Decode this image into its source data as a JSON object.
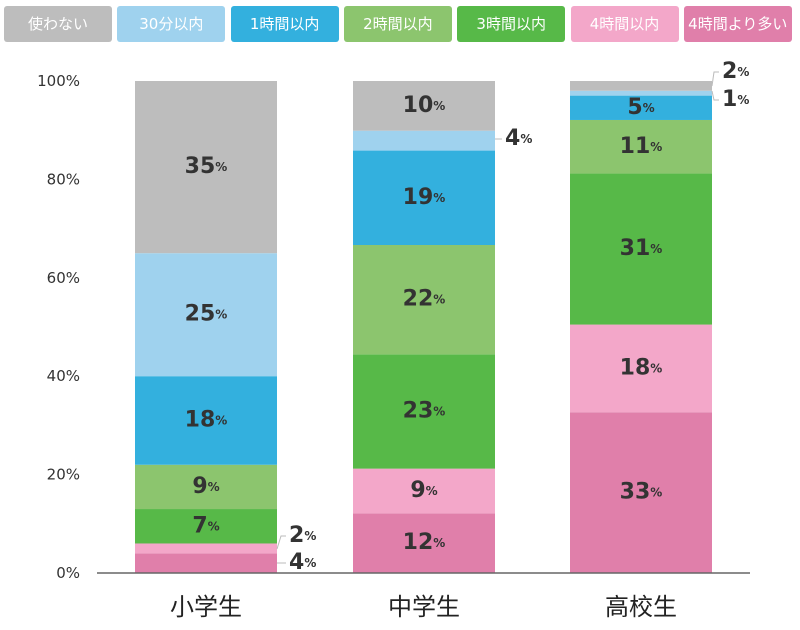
{
  "legend": [
    {
      "label": "使わない",
      "color": "#bdbdbd"
    },
    {
      "label": "30分以内",
      "color": "#9fd2ee"
    },
    {
      "label": "1時間以内",
      "color": "#33b0de"
    },
    {
      "label": "2時間以内",
      "color": "#8cc56e"
    },
    {
      "label": "3時間以内",
      "color": "#57b948"
    },
    {
      "label": "4時間以内",
      "color": "#f3a7c9"
    },
    {
      "label": "4時間より多い",
      "color": "#e07faa"
    }
  ],
  "chart_data": {
    "type": "bar",
    "stacked": true,
    "categories": [
      "小学生",
      "中学生",
      "高校生"
    ],
    "series": [
      {
        "name": "4時間より多い",
        "color": "#e07faa",
        "values": [
          4,
          12,
          33
        ]
      },
      {
        "name": "4時間以内",
        "color": "#f3a7c9",
        "values": [
          2,
          9,
          18
        ]
      },
      {
        "name": "3時間以内",
        "color": "#57b948",
        "values": [
          7,
          23,
          31
        ]
      },
      {
        "name": "2時間以内",
        "color": "#8cc56e",
        "values": [
          9,
          22,
          11
        ]
      },
      {
        "name": "1時間以内",
        "color": "#33b0de",
        "values": [
          18,
          19,
          5
        ]
      },
      {
        "name": "30分以内",
        "color": "#9fd2ee",
        "values": [
          25,
          4,
          1
        ]
      },
      {
        "name": "使わない",
        "color": "#bdbdbd",
        "values": [
          35,
          10,
          2
        ]
      }
    ],
    "y_ticks": [
      "0%",
      "20%",
      "40%",
      "60%",
      "80%",
      "100%"
    ],
    "ylim": [
      0,
      100
    ],
    "value_suffix": "%",
    "legend_position": "top",
    "grid": false
  }
}
